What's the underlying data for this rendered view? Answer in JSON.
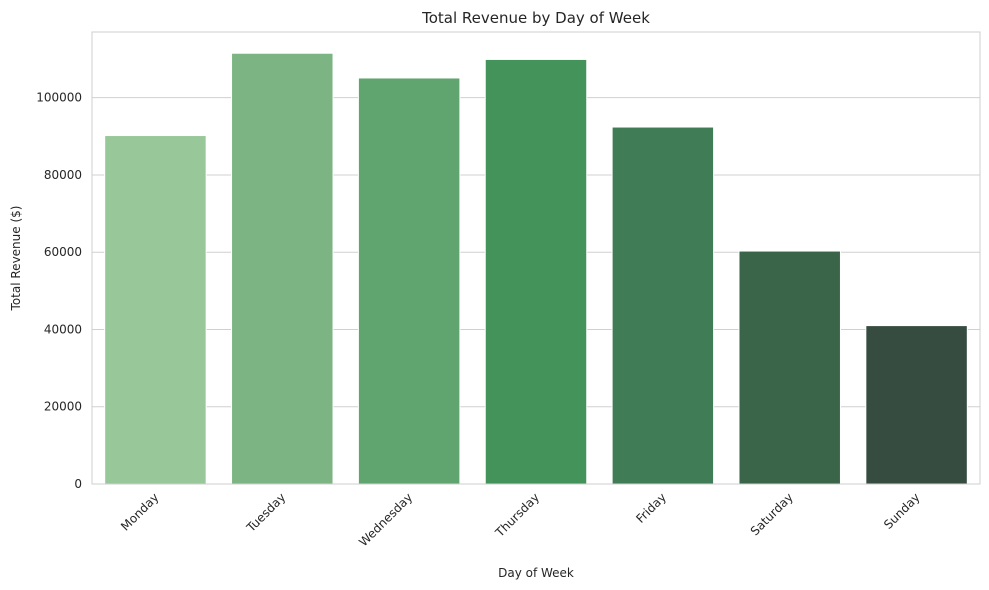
{
  "chart_data": {
    "type": "bar",
    "title": "Total Revenue by Day of Week",
    "xlabel": "Day of Week",
    "ylabel": "Total Revenue ($)",
    "categories": [
      "Monday",
      "Tuesday",
      "Wednesday",
      "Thursday",
      "Friday",
      "Saturday",
      "Sunday"
    ],
    "values": [
      90200,
      111500,
      105100,
      109900,
      92400,
      60300,
      41000
    ],
    "colors": [
      "#98c89a",
      "#7cb583",
      "#60a56f",
      "#44935b",
      "#407c55",
      "#3b6548",
      "#374c40"
    ],
    "ylim": [
      0,
      117000
    ],
    "yticks": [
      0,
      20000,
      40000,
      60000,
      80000,
      100000
    ],
    "grid": "horizontal",
    "legend": "none"
  }
}
